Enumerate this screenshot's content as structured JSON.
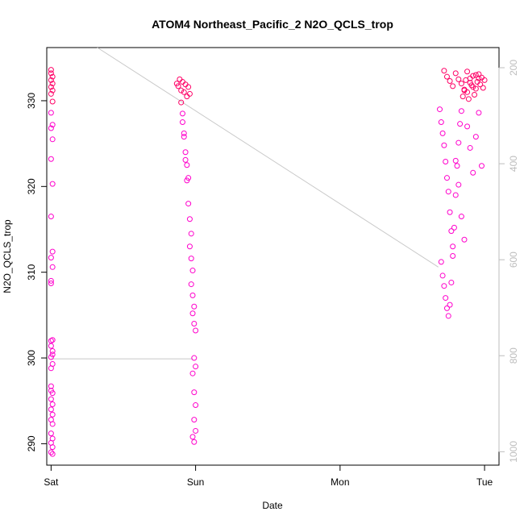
{
  "chart_data": {
    "type": "scatter",
    "title": "ATOM4 Northeast_Pacific_2 N2O_QCLS_trop",
    "xlabel": "Date",
    "ylabel": "N2O_QCLS_trop",
    "x_ticks": [
      "Sat",
      "Sun",
      "Mon",
      "Tue"
    ],
    "x_range_days": [
      -0.03,
      3.1
    ],
    "ylim": [
      287.5,
      336.2
    ],
    "y_ticks": [
      290,
      300,
      310,
      320,
      330
    ],
    "y2_ticks": [
      200,
      400,
      600,
      800,
      1000
    ],
    "y2_lim": [
      1028,
      158
    ],
    "grid": false,
    "point_color_main": "#ff00cc",
    "point_color_dense": "#ff0066",
    "line_color": "#c8c8c8",
    "series": [
      {
        "kind": "points",
        "x": [
          0.0,
          0.0,
          0.01,
          0.0,
          0.01,
          0.0,
          0.01,
          0.0,
          0.01,
          0.0,
          0.01,
          0.0,
          0.01,
          0.0,
          0.01,
          0.0,
          0.01,
          0.0,
          0.01,
          0.0,
          0.0,
          0.01,
          0.0,
          0.01,
          0.0,
          0.01,
          0.0,
          0.0,
          0.01,
          0.0,
          0.01,
          0.0,
          0.01,
          0.0,
          0.01,
          0.0,
          0.01,
          0.0,
          0.01,
          0.0,
          0.01,
          0.0,
          0.01,
          0.0
        ],
        "y": [
          333.6,
          333.2,
          332.8,
          332.4,
          332.0,
          331.6,
          331.2,
          330.8,
          329.9,
          328.6,
          327.2,
          326.8,
          325.5,
          323.2,
          320.3,
          316.5,
          312.4,
          311.7,
          310.6,
          309.0,
          308.7,
          302.1,
          301.4,
          300.8,
          300.1,
          299.3,
          298.8,
          296.7,
          295.9,
          295.2,
          294.6,
          294.0,
          293.4,
          292.8,
          292.3,
          291.2,
          290.6,
          290.1,
          289.6,
          289.0,
          288.8,
          302.0,
          300.4,
          296.2
        ]
      },
      {
        "kind": "points",
        "x": [
          0.87,
          0.88,
          0.89,
          0.9,
          0.91,
          0.92,
          0.93,
          0.94,
          0.95,
          0.96,
          0.9,
          0.91,
          0.92,
          0.93,
          0.94,
          0.95,
          0.91,
          0.92,
          0.93,
          0.94,
          0.95,
          0.96,
          0.97,
          0.96,
          0.97,
          0.98,
          0.97,
          0.98,
          0.99,
          0.98,
          0.99,
          1.0,
          0.99,
          1.0,
          0.98,
          0.99,
          1.0,
          0.99,
          1.0,
          0.98,
          0.99
        ],
        "y": [
          332.0,
          331.7,
          332.5,
          331.2,
          332.2,
          331.0,
          331.9,
          330.5,
          331.6,
          330.8,
          329.8,
          328.5,
          326.2,
          324.0,
          322.5,
          321.0,
          327.5,
          325.8,
          323.1,
          320.7,
          318.0,
          316.2,
          314.5,
          313.0,
          311.6,
          310.2,
          308.6,
          307.3,
          306.0,
          305.2,
          304.0,
          303.2,
          300.0,
          299.0,
          298.2,
          296.0,
          294.5,
          292.8,
          291.5,
          290.8,
          290.2
        ]
      },
      {
        "kind": "points",
        "x": [
          2.69,
          2.7,
          2.71,
          2.72,
          2.73,
          2.74,
          2.75,
          2.76,
          2.77,
          2.78,
          2.7,
          2.71,
          2.72,
          2.73,
          2.74,
          2.75,
          2.76,
          2.77,
          2.78,
          2.79,
          2.8,
          2.81,
          2.82,
          2.83,
          2.84,
          2.85,
          2.86,
          2.87,
          2.88,
          2.89,
          2.9,
          2.91,
          2.92,
          2.93,
          2.94,
          2.95,
          2.96,
          2.97,
          2.98,
          2.99,
          3.0,
          2.8,
          2.82,
          2.84,
          2.86,
          2.88,
          2.9,
          2.92,
          2.94,
          2.96,
          2.98,
          2.72,
          2.74,
          2.76,
          2.78,
          2.8,
          2.82,
          2.84,
          2.86,
          2.88,
          2.9,
          2.92,
          2.94,
          2.96
        ],
        "y": [
          329.0,
          327.5,
          326.2,
          324.8,
          322.9,
          321.0,
          319.4,
          317.0,
          314.8,
          313.0,
          311.2,
          309.6,
          308.4,
          307.0,
          305.8,
          304.9,
          306.2,
          308.8,
          311.9,
          315.2,
          319.0,
          322.4,
          325.1,
          327.3,
          328.8,
          330.5,
          331.3,
          332.4,
          331.0,
          330.2,
          332.6,
          331.8,
          332.9,
          330.7,
          331.4,
          332.2,
          333.1,
          331.9,
          332.7,
          331.5,
          332.4,
          323.0,
          320.2,
          316.5,
          313.8,
          327.0,
          324.5,
          321.6,
          325.8,
          328.6,
          322.4,
          333.5,
          332.8,
          332.3,
          331.7,
          333.2,
          332.5,
          332.0,
          331.2,
          333.4,
          332.1,
          331.6,
          333.0,
          332.6
        ]
      },
      {
        "kind": "line",
        "x": [
          0.32,
          2.68
        ],
        "y": [
          336.2,
          310.6
        ]
      },
      {
        "kind": "line",
        "x": [
          0.0,
          0.98
        ],
        "y": [
          299.9,
          299.9
        ]
      }
    ]
  }
}
